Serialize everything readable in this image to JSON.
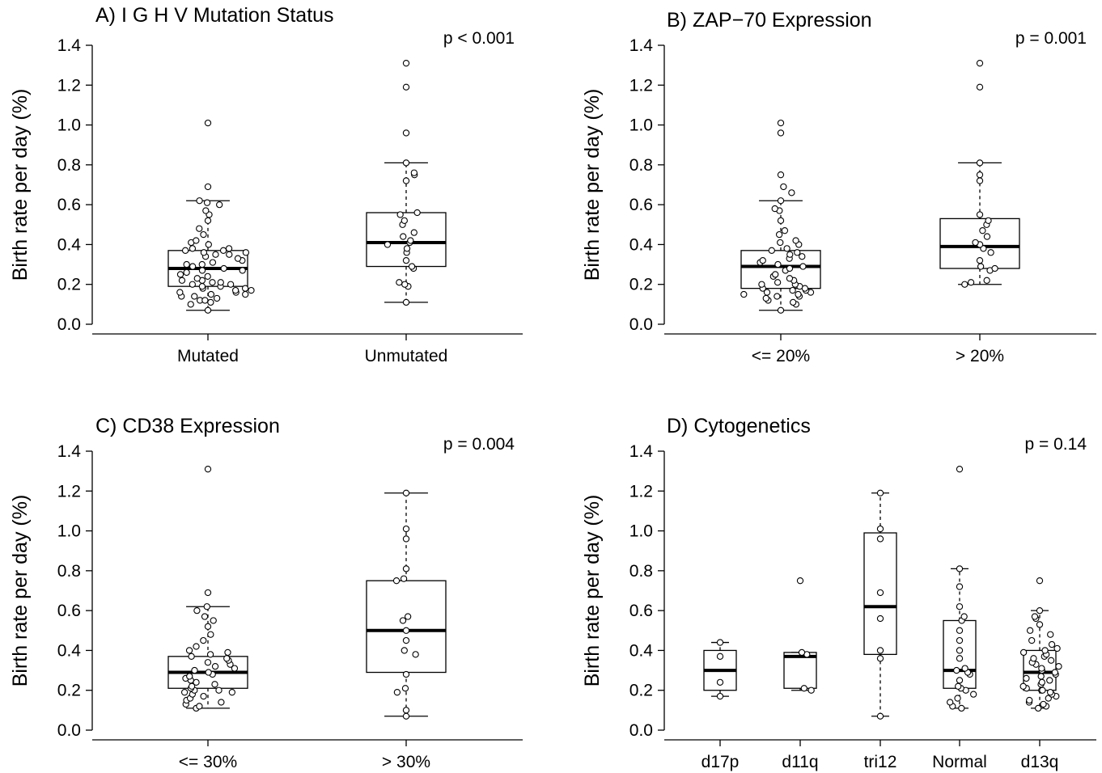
{
  "chart_data": [
    {
      "type": "box",
      "title": "A) I G H V Mutation Status",
      "ylabel": "Birth rate per day (%)",
      "ylim": [
        0,
        1.4
      ],
      "yticks": [
        "0.0",
        "0.2",
        "0.4",
        "0.6",
        "0.8",
        "1.0",
        "1.2",
        "1.4"
      ],
      "p_value": "p < 0.001",
      "categories": [
        "Mutated",
        "Unmutated"
      ],
      "boxes": [
        {
          "name": "Mutated",
          "whisker_low": 0.07,
          "q1": 0.19,
          "median": 0.28,
          "q3": 0.37,
          "whisker_high": 0.62,
          "points": [
            0.07,
            0.1,
            0.11,
            0.12,
            0.12,
            0.13,
            0.14,
            0.14,
            0.15,
            0.15,
            0.16,
            0.16,
            0.17,
            0.17,
            0.18,
            0.18,
            0.19,
            0.19,
            0.2,
            0.2,
            0.21,
            0.21,
            0.22,
            0.22,
            0.23,
            0.24,
            0.25,
            0.26,
            0.27,
            0.27,
            0.28,
            0.29,
            0.3,
            0.3,
            0.31,
            0.32,
            0.33,
            0.34,
            0.35,
            0.35,
            0.36,
            0.36,
            0.37,
            0.37,
            0.38,
            0.38,
            0.4,
            0.41,
            0.42,
            0.45,
            0.48,
            0.52,
            0.55,
            0.57,
            0.6,
            0.61,
            0.62,
            0.69,
            1.01
          ]
        },
        {
          "name": "Unmutated",
          "whisker_low": 0.11,
          "q1": 0.29,
          "median": 0.41,
          "q3": 0.56,
          "whisker_high": 0.81,
          "points": [
            0.11,
            0.19,
            0.2,
            0.21,
            0.28,
            0.29,
            0.32,
            0.36,
            0.38,
            0.4,
            0.41,
            0.42,
            0.44,
            0.46,
            0.5,
            0.52,
            0.55,
            0.56,
            0.72,
            0.75,
            0.76,
            0.81,
            0.96,
            1.19,
            1.31
          ]
        }
      ]
    },
    {
      "type": "box",
      "title": "B) ZAP−70 Expression",
      "ylabel": "Birth rate per day (%)",
      "ylim": [
        0,
        1.4
      ],
      "yticks": [
        "0.0",
        "0.2",
        "0.4",
        "0.6",
        "0.8",
        "1.0",
        "1.2",
        "1.4"
      ],
      "p_value": "p = 0.001",
      "categories": [
        "<= 20%",
        "> 20%"
      ],
      "boxes": [
        {
          "name": "<= 20%",
          "whisker_low": 0.07,
          "q1": 0.18,
          "median": 0.29,
          "q3": 0.37,
          "whisker_high": 0.62,
          "points": [
            0.07,
            0.1,
            0.11,
            0.12,
            0.13,
            0.14,
            0.14,
            0.15,
            0.15,
            0.16,
            0.16,
            0.17,
            0.17,
            0.18,
            0.18,
            0.19,
            0.2,
            0.2,
            0.21,
            0.22,
            0.23,
            0.24,
            0.25,
            0.27,
            0.28,
            0.29,
            0.3,
            0.31,
            0.32,
            0.33,
            0.34,
            0.35,
            0.36,
            0.37,
            0.38,
            0.4,
            0.41,
            0.42,
            0.45,
            0.47,
            0.52,
            0.57,
            0.58,
            0.62,
            0.66,
            0.69,
            0.75,
            0.96,
            1.01
          ]
        },
        {
          "name": "> 20%",
          "whisker_low": 0.2,
          "q1": 0.28,
          "median": 0.39,
          "q3": 0.53,
          "whisker_high": 0.81,
          "points": [
            0.2,
            0.21,
            0.22,
            0.27,
            0.28,
            0.29,
            0.32,
            0.36,
            0.38,
            0.4,
            0.41,
            0.44,
            0.47,
            0.5,
            0.52,
            0.55,
            0.72,
            0.75,
            0.81,
            1.19,
            1.31
          ]
        }
      ]
    },
    {
      "type": "box",
      "title": "C) CD38 Expression",
      "ylabel": "Birth rate per day (%)",
      "ylim": [
        0,
        1.4
      ],
      "yticks": [
        "0.0",
        "0.2",
        "0.4",
        "0.6",
        "0.8",
        "1.0",
        "1.2",
        "1.4"
      ],
      "p_value": "p = 0.004",
      "categories": [
        "<= 30%",
        "> 30%"
      ],
      "boxes": [
        {
          "name": "<= 30%",
          "whisker_low": 0.11,
          "q1": 0.21,
          "median": 0.29,
          "q3": 0.37,
          "whisker_high": 0.62,
          "points": [
            0.11,
            0.12,
            0.13,
            0.14,
            0.15,
            0.16,
            0.17,
            0.18,
            0.19,
            0.19,
            0.2,
            0.2,
            0.21,
            0.22,
            0.23,
            0.24,
            0.25,
            0.26,
            0.27,
            0.28,
            0.29,
            0.3,
            0.31,
            0.32,
            0.33,
            0.34,
            0.35,
            0.36,
            0.37,
            0.38,
            0.39,
            0.4,
            0.42,
            0.45,
            0.48,
            0.52,
            0.55,
            0.57,
            0.6,
            0.62,
            0.69,
            1.31
          ]
        },
        {
          "name": "> 30%",
          "whisker_low": 0.07,
          "q1": 0.29,
          "median": 0.5,
          "q3": 0.75,
          "whisker_high": 1.19,
          "points": [
            0.07,
            0.1,
            0.19,
            0.21,
            0.28,
            0.38,
            0.4,
            0.45,
            0.5,
            0.55,
            0.57,
            0.75,
            0.76,
            0.81,
            0.96,
            1.01,
            1.19
          ]
        }
      ]
    },
    {
      "type": "box",
      "title": "D) Cytogenetics",
      "ylabel": "Birth rate per day (%)",
      "ylim": [
        0,
        1.4
      ],
      "yticks": [
        "0.0",
        "0.2",
        "0.4",
        "0.6",
        "0.8",
        "1.0",
        "1.2",
        "1.4"
      ],
      "p_value": "p = 0.14",
      "categories": [
        "d17p",
        "d11q",
        "tri12",
        "Normal",
        "d13q"
      ],
      "boxes": [
        {
          "name": "d17p",
          "whisker_low": 0.17,
          "q1": 0.2,
          "median": 0.3,
          "q3": 0.4,
          "whisker_high": 0.44,
          "points": [
            0.17,
            0.24,
            0.37,
            0.44
          ]
        },
        {
          "name": "d11q",
          "whisker_low": 0.2,
          "q1": 0.21,
          "median": 0.37,
          "q3": 0.39,
          "whisker_high": 0.39,
          "points": [
            0.2,
            0.21,
            0.38,
            0.39,
            0.75
          ]
        },
        {
          "name": "tri12",
          "whisker_low": 0.07,
          "q1": 0.38,
          "median": 0.62,
          "q3": 0.99,
          "whisker_high": 1.19,
          "points": [
            0.07,
            0.36,
            0.4,
            0.56,
            0.69,
            0.96,
            1.01,
            1.19
          ]
        },
        {
          "name": "Normal",
          "whisker_low": 0.11,
          "q1": 0.21,
          "median": 0.3,
          "q3": 0.55,
          "whisker_high": 0.81,
          "points": [
            0.11,
            0.12,
            0.14,
            0.16,
            0.18,
            0.2,
            0.21,
            0.22,
            0.25,
            0.28,
            0.29,
            0.3,
            0.31,
            0.36,
            0.4,
            0.45,
            0.5,
            0.55,
            0.57,
            0.62,
            0.72,
            0.81,
            1.31
          ]
        },
        {
          "name": "d13q",
          "whisker_low": 0.11,
          "q1": 0.2,
          "median": 0.29,
          "q3": 0.4,
          "whisker_high": 0.6,
          "points": [
            0.11,
            0.12,
            0.13,
            0.14,
            0.15,
            0.16,
            0.17,
            0.18,
            0.19,
            0.2,
            0.2,
            0.21,
            0.22,
            0.23,
            0.24,
            0.25,
            0.26,
            0.27,
            0.28,
            0.29,
            0.3,
            0.31,
            0.32,
            0.33,
            0.34,
            0.35,
            0.36,
            0.37,
            0.38,
            0.39,
            0.4,
            0.41,
            0.43,
            0.45,
            0.48,
            0.5,
            0.53,
            0.56,
            0.57,
            0.6,
            0.75
          ]
        }
      ]
    }
  ]
}
